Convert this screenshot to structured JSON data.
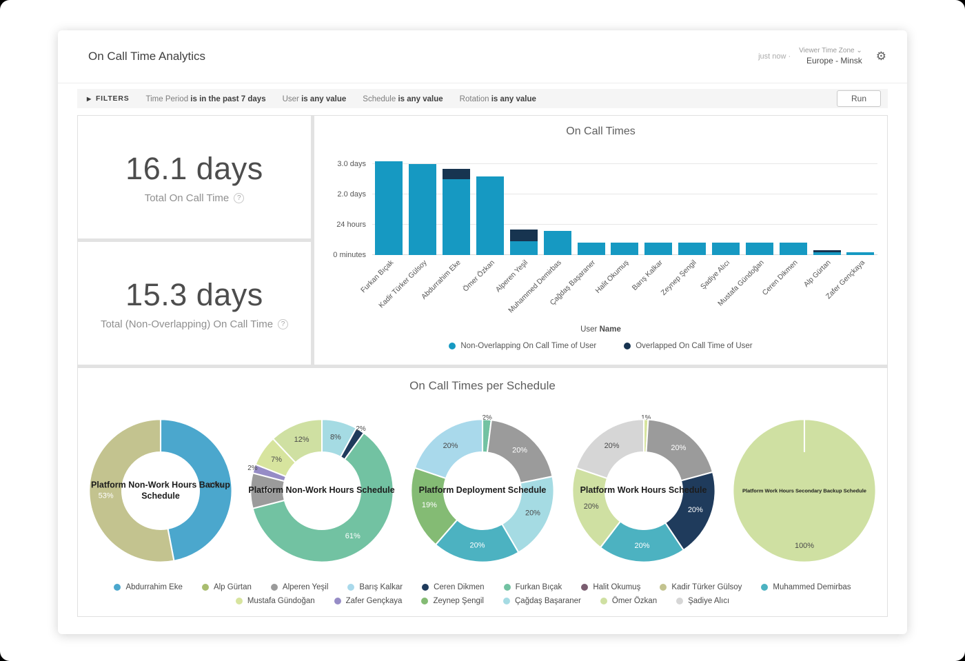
{
  "header": {
    "title": "On Call Time Analytics",
    "refreshed": "just now",
    "separator": "·",
    "timezone_label": "Viewer Time Zone",
    "timezone_value": "Europe - Minsk"
  },
  "icons": {
    "settings": "⚙",
    "chevron_down": "⌄",
    "filters_arrow": "▶",
    "info": "?"
  },
  "filters": {
    "label": "FILTERS",
    "run_label": "Run",
    "items": [
      {
        "name": "Time Period",
        "value": "is in the past 7 days"
      },
      {
        "name": "User",
        "value": "is any value"
      },
      {
        "name": "Schedule",
        "value": "is any value"
      },
      {
        "name": "Rotation",
        "value": "is any value"
      }
    ]
  },
  "kpis": [
    {
      "value": "16.1 days",
      "label": "Total On Call Time"
    },
    {
      "value": "15.3 days",
      "label": "Total (Non-Overlapping) On Call Time"
    }
  ],
  "xaxis": {
    "prefix": "User ",
    "bold": "Name"
  },
  "per_schedule_title": "On Call Times per Schedule",
  "schedule_legend": [
    {
      "name": "Abdurrahim Eke",
      "color": "#4ba7cd"
    },
    {
      "name": "Alp Gürtan",
      "color": "#a9bd6f"
    },
    {
      "name": "Alperen Yeşil",
      "color": "#9b9b9b"
    },
    {
      "name": "Barış Kalkar",
      "color": "#a9d9eb"
    },
    {
      "name": "Ceren Dikmen",
      "color": "#1f3b5c"
    },
    {
      "name": "Furkan Bıçak",
      "color": "#72c2a2"
    },
    {
      "name": "Halit Okumuş",
      "color": "#7a5d70"
    },
    {
      "name": "Kadir Türker Gülsoy",
      "color": "#c3c38f"
    },
    {
      "name": "Muhammed Demirbas",
      "color": "#4cb2c1"
    },
    {
      "name": "Mustafa Gündoğan",
      "color": "#d7e49e"
    },
    {
      "name": "Zafer Gençkaya",
      "color": "#968cc6"
    },
    {
      "name": "Zeynep Şengil",
      "color": "#84bb74"
    },
    {
      "name": "Çağdaş Başaraner",
      "color": "#a5dbe3"
    },
    {
      "name": "Ömer Özkan",
      "color": "#cfe0a2"
    },
    {
      "name": "Şadiye Alıcı",
      "color": "#d6d6d6"
    }
  ],
  "chart_data": [
    {
      "type": "bar",
      "title": "On Call Times",
      "stacked": true,
      "unit": "days",
      "xlabel": "User Name",
      "ylim": [
        0,
        3.3
      ],
      "legend_position": "bottom",
      "categories": [
        "Furkan Bıçak",
        "Kadir Türker Gülsoy",
        "Abdurrahim Eke",
        "Ömer Özkan",
        "Alperen Yeşil",
        "Muhammed Demirbas",
        "Çağdaş Başaraner",
        "Halit Okumuş",
        "Barış Kalkar",
        "Zeynep Şengil",
        "Şadiye Alıcı",
        "Mustafa Gündoğan",
        "Ceren Dikmen",
        "Alp Gürtan",
        "Zafer Gençkaya"
      ],
      "series": [
        {
          "name": "Non-Overlapping On Call Time of User",
          "color": "#1699c2",
          "values": [
            3.1,
            3.0,
            2.5,
            2.6,
            0.45,
            0.8,
            0.4,
            0.4,
            0.4,
            0.4,
            0.4,
            0.4,
            0.4,
            0.1,
            0.08
          ]
        },
        {
          "name": "Overlapped On Call Time of User",
          "color": "#173450",
          "values": [
            0,
            0,
            0.35,
            0,
            0.4,
            0,
            0,
            0,
            0,
            0,
            0,
            0,
            0,
            0.05,
            0
          ]
        }
      ],
      "y_ticks": [
        {
          "value": 3,
          "label": "3.0 days"
        },
        {
          "value": 2,
          "label": "2.0 days"
        },
        {
          "value": 1,
          "label": "24 hours"
        },
        {
          "value": 0,
          "label": "0 minutes"
        }
      ]
    },
    {
      "type": "donut",
      "title": "Platform Non-Work Hours Backup Schedule",
      "slices": [
        {
          "name": "Abdurrahim Eke",
          "value": 47,
          "color": "#4ba7cd",
          "text": "dark"
        },
        {
          "name": "Kadir Türker Gülsoy",
          "value": 53,
          "color": "#c3c38f",
          "text": "light"
        }
      ]
    },
    {
      "type": "donut",
      "title": "Platform Non-Work Hours Schedule",
      "slices": [
        {
          "name": "Çağdaş Başaraner",
          "value": 8,
          "color": "#a5dbe3",
          "text": "dark"
        },
        {
          "name": "Ceren Dikmen",
          "value": 2,
          "color": "#1f3b5c",
          "text": "dark"
        },
        {
          "name": "Furkan Bıçak",
          "value": 61,
          "color": "#72c2a2",
          "text": "light"
        },
        {
          "name": "Alperen Yeşil",
          "value": 8,
          "color": "#9b9b9b",
          "text": "light"
        },
        {
          "name": "Zafer Gençkaya",
          "value": 2,
          "color": "#968cc6",
          "text": "dark"
        },
        {
          "name": "Mustafa Gündoğan",
          "value": 7,
          "color": "#d7e49e",
          "text": "dark"
        },
        {
          "name": "Ömer Özkan",
          "value": 12,
          "color": "#cfe0a2",
          "text": "dark"
        }
      ]
    },
    {
      "type": "donut",
      "title": "Platform Deployment Schedule",
      "slices": [
        {
          "name": "Furkan Bıçak",
          "value": 2,
          "color": "#72c2a2",
          "text": "dark"
        },
        {
          "name": "Alperen Yeşil",
          "value": 20,
          "color": "#9b9b9b",
          "text": "light"
        },
        {
          "name": "Çağdaş Başaraner",
          "value": 20,
          "color": "#a5dbe3",
          "text": "dark"
        },
        {
          "name": "Muhammed Demirbas",
          "value": 20,
          "color": "#4cb2c1",
          "text": "light"
        },
        {
          "name": "Zeynep Şengil",
          "value": 19,
          "color": "#84bb74",
          "text": "light"
        },
        {
          "name": "Barış Kalkar",
          "value": 20,
          "color": "#a9d9eb",
          "text": "dark"
        }
      ]
    },
    {
      "type": "donut",
      "title": "Platform Work Hours Schedule",
      "slices": [
        {
          "name": "Mustafa Gündoğan",
          "value": 1,
          "color": "#d7e49e",
          "text": "dark"
        },
        {
          "name": "Alperen Yeşil",
          "value": 20,
          "color": "#9b9b9b",
          "text": "light"
        },
        {
          "name": "Ceren Dikmen",
          "value": 20,
          "color": "#1f3b5c",
          "text": "light"
        },
        {
          "name": "Muhammed Demirbas",
          "value": 20,
          "color": "#4cb2c1",
          "text": "light"
        },
        {
          "name": "Ömer Özkan",
          "value": 20,
          "color": "#cfe0a2",
          "text": "dark"
        },
        {
          "name": "Şadiye Alıcı",
          "value": 20,
          "color": "#d6d6d6",
          "text": "dark"
        }
      ]
    },
    {
      "type": "donut",
      "title": "Platform Work Hours Secondary Backup Schedule",
      "slices": [
        {
          "name": "Ömer Özkan",
          "value": 100,
          "color": "#cfe0a2",
          "text": "dark"
        }
      ]
    }
  ]
}
